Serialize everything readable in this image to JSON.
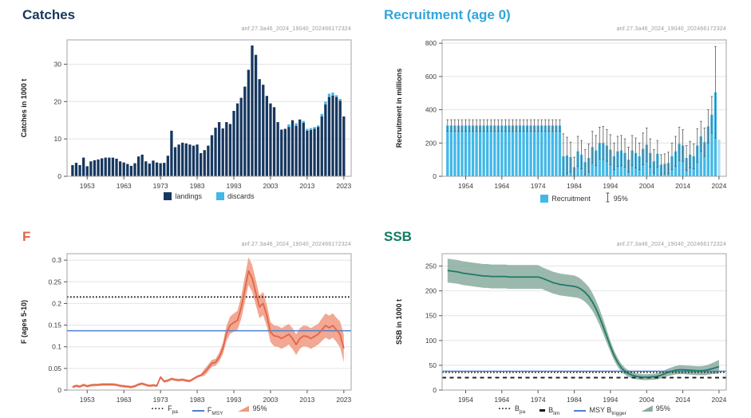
{
  "page": {
    "annotation": "anf.27.3a46_2024_19040_202466172324"
  },
  "years": {
    "to2023_range": [
      1949,
      2023
    ],
    "to2024_range": [
      1949,
      2024
    ]
  },
  "chart_data": [
    {
      "type": "bar-stacked",
      "title": "Catches",
      "title_color": "#17375e",
      "ylabel": "Catches in 1000 t",
      "ylim": [
        0,
        36.5
      ],
      "yticks": [
        0,
        10,
        20,
        30
      ],
      "x_range": [
        1949,
        2023
      ],
      "xlim": [
        1947.5,
        2025
      ],
      "xticks": [
        1953,
        1963,
        1973,
        1983,
        1993,
        2003,
        2013,
        2023
      ],
      "grid": true,
      "legend_position": "bottom",
      "series": [
        {
          "name": "landings",
          "color": "#16375f",
          "values": [
            3,
            3.6,
            3,
            5,
            2.7,
            4,
            4.3,
            4.5,
            4.8,
            5,
            5,
            5,
            4.7,
            4,
            3.7,
            3.3,
            2.8,
            3.5,
            5.3,
            5.8,
            4,
            3.4,
            4.2,
            3.7,
            3.5,
            3.6,
            5.5,
            12.2,
            7.8,
            8.5,
            9,
            8.8,
            8.5,
            8.2,
            8.5,
            6.2,
            7,
            8.2,
            11,
            13,
            14.5,
            12.8,
            14.5,
            14,
            17.5,
            19.5,
            21,
            24,
            28.5,
            35,
            32.5,
            26,
            24.5,
            21.5,
            19.5,
            18.5,
            14.5,
            12.5,
            12.7,
            13.2,
            15,
            13.5,
            15.2,
            14.3,
            12.2,
            12.4,
            12.7,
            13.2,
            16,
            19.2,
            21.2,
            21.6,
            21.2,
            20.2,
            16
          ]
        },
        {
          "name": "discards",
          "color": "#41b8e8",
          "values": [
            0,
            0,
            0,
            0,
            0,
            0,
            0,
            0,
            0,
            0,
            0,
            0,
            0,
            0,
            0,
            0,
            0,
            0,
            0,
            0,
            0,
            0,
            0,
            0,
            0,
            0,
            0,
            0,
            0,
            0,
            0,
            0,
            0,
            0,
            0,
            0,
            0,
            0,
            0,
            0,
            0,
            0,
            0,
            0,
            0,
            0,
            0,
            0,
            0,
            0,
            0,
            0,
            0,
            0,
            0,
            0,
            0,
            0,
            0,
            0.7,
            0,
            0.7,
            0,
            0.5,
            0.5,
            0.5,
            0.5,
            0.4,
            0.7,
            0.8,
            0.9,
            0.8,
            0.5,
            0.5
          ]
        }
      ],
      "legend": [
        {
          "glyph": "square",
          "color": "#16375f",
          "label": "landings"
        },
        {
          "glyph": "square",
          "color": "#41b8e8",
          "label": "discards"
        }
      ]
    },
    {
      "type": "bar-error",
      "title": "Recruitment (age 0)",
      "title_color": "#31a5dd",
      "ylabel": "Recruitment in millions",
      "ylim": [
        0,
        820
      ],
      "yticks": [
        0,
        200,
        400,
        600,
        800
      ],
      "x_range": [
        1949,
        2024
      ],
      "xlim": [
        1947.5,
        2026
      ],
      "xticks": [
        1954,
        1964,
        1974,
        1984,
        1994,
        2004,
        2014,
        2024
      ],
      "grid": true,
      "bar_color": "#41b8e8",
      "forecast_color": "#a9dff5",
      "values": [
        305,
        305,
        305,
        305,
        305,
        305,
        305,
        305,
        305,
        305,
        305,
        305,
        305,
        305,
        305,
        305,
        305,
        305,
        305,
        305,
        305,
        305,
        305,
        305,
        305,
        305,
        305,
        305,
        305,
        305,
        305,
        305,
        120,
        125,
        115,
        55,
        150,
        130,
        85,
        110,
        175,
        155,
        200,
        200,
        185,
        160,
        120,
        150,
        155,
        140,
        100,
        155,
        140,
        120,
        165,
        190,
        140,
        90,
        135,
        70,
        75,
        80,
        120,
        150,
        195,
        185,
        110,
        130,
        120,
        185,
        240,
        205,
        300,
        370,
        505,
        220
      ],
      "hi": [
        340,
        340,
        340,
        340,
        340,
        340,
        340,
        340,
        340,
        340,
        340,
        340,
        340,
        340,
        340,
        340,
        340,
        340,
        340,
        340,
        340,
        340,
        340,
        340,
        340,
        340,
        340,
        340,
        340,
        340,
        340,
        340,
        255,
        235,
        205,
        115,
        240,
        215,
        160,
        195,
        270,
        245,
        295,
        300,
        280,
        250,
        200,
        240,
        245,
        225,
        175,
        245,
        230,
        200,
        260,
        290,
        225,
        160,
        215,
        130,
        135,
        145,
        200,
        240,
        295,
        280,
        185,
        210,
        195,
        285,
        330,
        290,
        400,
        480,
        780,
        null
      ],
      "legend": [
        {
          "glyph": "square",
          "color": "#41b8e8",
          "label": "Recruitment"
        },
        {
          "glyph": "errorbar",
          "color": "#5a5a5a",
          "label": "95%"
        }
      ]
    },
    {
      "type": "line-band",
      "title": "F",
      "title_color": "#e2654a",
      "ylabel": "F (ages 5-10)",
      "ylim": [
        0,
        0.315
      ],
      "yticks": [
        0,
        0.05,
        0.1,
        0.15,
        0.2,
        0.25,
        0.3
      ],
      "x_range": [
        1949,
        2023
      ],
      "xlim": [
        1947.5,
        2025
      ],
      "xticks": [
        1953,
        1963,
        1973,
        1983,
        1993,
        2003,
        2013,
        2023
      ],
      "grid": true,
      "line_color": "#e2654a",
      "band_color": "#f0997f",
      "values": [
        0.007,
        0.01,
        0.008,
        0.012,
        0.009,
        0.011,
        0.012,
        0.012,
        0.013,
        0.013,
        0.013,
        0.013,
        0.012,
        0.01,
        0.009,
        0.008,
        0.007,
        0.009,
        0.013,
        0.015,
        0.012,
        0.01,
        0.011,
        0.01,
        0.03,
        0.02,
        0.022,
        0.026,
        0.024,
        0.023,
        0.024,
        0.022,
        0.021,
        0.026,
        0.031,
        0.034,
        0.041,
        0.051,
        0.062,
        0.064,
        0.076,
        0.096,
        0.131,
        0.15,
        0.156,
        0.161,
        0.19,
        0.232,
        0.275,
        0.258,
        0.225,
        0.192,
        0.2,
        0.172,
        0.134,
        0.125,
        0.124,
        0.119,
        0.124,
        0.129,
        0.119,
        0.105,
        0.119,
        0.125,
        0.124,
        0.119,
        0.124,
        0.129,
        0.139,
        0.149,
        0.144,
        0.149,
        0.139,
        0.128,
        0.096
      ],
      "band_delta": [
        0.003,
        0.003,
        0.003,
        0.003,
        0.003,
        0.003,
        0.003,
        0.003,
        0.003,
        0.003,
        0.003,
        0.003,
        0.003,
        0.003,
        0.003,
        0.003,
        0.003,
        0.003,
        0.003,
        0.003,
        0.003,
        0.003,
        0.003,
        0.003,
        0.003,
        0.003,
        0.003,
        0.003,
        0.003,
        0.003,
        0.003,
        0.003,
        0.003,
        0.003,
        0.003,
        0.003,
        0.008,
        0.008,
        0.008,
        0.008,
        0.01,
        0.013,
        0.018,
        0.02,
        0.021,
        0.022,
        0.026,
        0.03,
        0.032,
        0.031,
        0.029,
        0.026,
        0.027,
        0.025,
        0.023,
        0.024,
        0.024,
        0.024,
        0.024,
        0.024,
        0.024,
        0.024,
        0.024,
        0.024,
        0.024,
        0.024,
        0.024,
        0.024,
        0.026,
        0.028,
        0.028,
        0.028,
        0.028,
        0.03,
        0.032
      ],
      "refs": [
        {
          "name": "Fpa",
          "value": 0.215,
          "style": "dotted",
          "color": "#1a1a1a"
        },
        {
          "name": "FMSY",
          "value": 0.137,
          "style": "solid",
          "color": "#4d7fd0"
        }
      ],
      "legend": [
        {
          "glyph": "dotted",
          "color": "#1a1a1a",
          "label": "F",
          "sub": "pa"
        },
        {
          "glyph": "line",
          "color": "#4d7fd0",
          "label": "F",
          "sub": "MSY"
        },
        {
          "glyph": "band",
          "color": "#f0997f",
          "label": "95%"
        }
      ]
    },
    {
      "type": "line-band",
      "title": "SSB",
      "title_color": "#0e7c63",
      "ylabel": "SSB in 1000 t",
      "ylim": [
        0,
        275
      ],
      "yticks": [
        0,
        50,
        100,
        150,
        200,
        250
      ],
      "x_range": [
        1949,
        2024
      ],
      "xlim": [
        1947.5,
        2026
      ],
      "xticks": [
        1954,
        1964,
        1974,
        1984,
        1994,
        2004,
        2014,
        2024
      ],
      "grid": true,
      "line_color": "#1f7a68",
      "band_color": "#8aab9e",
      "values": [
        241,
        240,
        239,
        238,
        236,
        235,
        234,
        233,
        232,
        231,
        230,
        230,
        229,
        229,
        229,
        229,
        229,
        228,
        228,
        228,
        228,
        228,
        228,
        228,
        228,
        228,
        226,
        223,
        220,
        217,
        215,
        213,
        212,
        211,
        210,
        209,
        207,
        203,
        197,
        189,
        178,
        164,
        147,
        128,
        108,
        88,
        70,
        56,
        45,
        38,
        33,
        30,
        28,
        27,
        26,
        26,
        26.5,
        27,
        28,
        30,
        33,
        36,
        38,
        40,
        41,
        41,
        40.5,
        40,
        39.5,
        39,
        39,
        39.5,
        41,
        43,
        45,
        47,
        49
      ],
      "band_delta": [
        24,
        24,
        24,
        24,
        24,
        24,
        24,
        24,
        24,
        24,
        24,
        24,
        24,
        24,
        24,
        24,
        24,
        24,
        24,
        24,
        24,
        24,
        24,
        24,
        24,
        24,
        22,
        22,
        22,
        22,
        22,
        22,
        22,
        22,
        22,
        22,
        21,
        20,
        19,
        19,
        18,
        17,
        16,
        15,
        13,
        11,
        10,
        9,
        8,
        7,
        6.5,
        6,
        6,
        6,
        6,
        6,
        6,
        6,
        6,
        6.5,
        7,
        7.5,
        8,
        8.5,
        9,
        9,
        9,
        9,
        9,
        9,
        9,
        9.5,
        10,
        11,
        12.5,
        14
      ],
      "refs": [
        {
          "name": "Bpa",
          "value": 36,
          "style": "dotted",
          "color": "#1a1a1a"
        },
        {
          "name": "MSY Btrigger",
          "value": 38,
          "style": "solid",
          "color": "#4d7fd0"
        },
        {
          "name": "Blim",
          "value": 25,
          "style": "dashed",
          "color": "#1a1a1a"
        }
      ],
      "legend": [
        {
          "glyph": "dotted",
          "color": "#1a1a1a",
          "label": "B",
          "sub": "pa"
        },
        {
          "glyph": "dash",
          "color": "#1a1a1a",
          "label": "B",
          "sub": "lim"
        },
        {
          "glyph": "line",
          "color": "#4d7fd0",
          "label": "MSY B",
          "sub": "trigger"
        },
        {
          "glyph": "band",
          "color": "#8aab9e",
          "label": "95%"
        }
      ]
    }
  ]
}
